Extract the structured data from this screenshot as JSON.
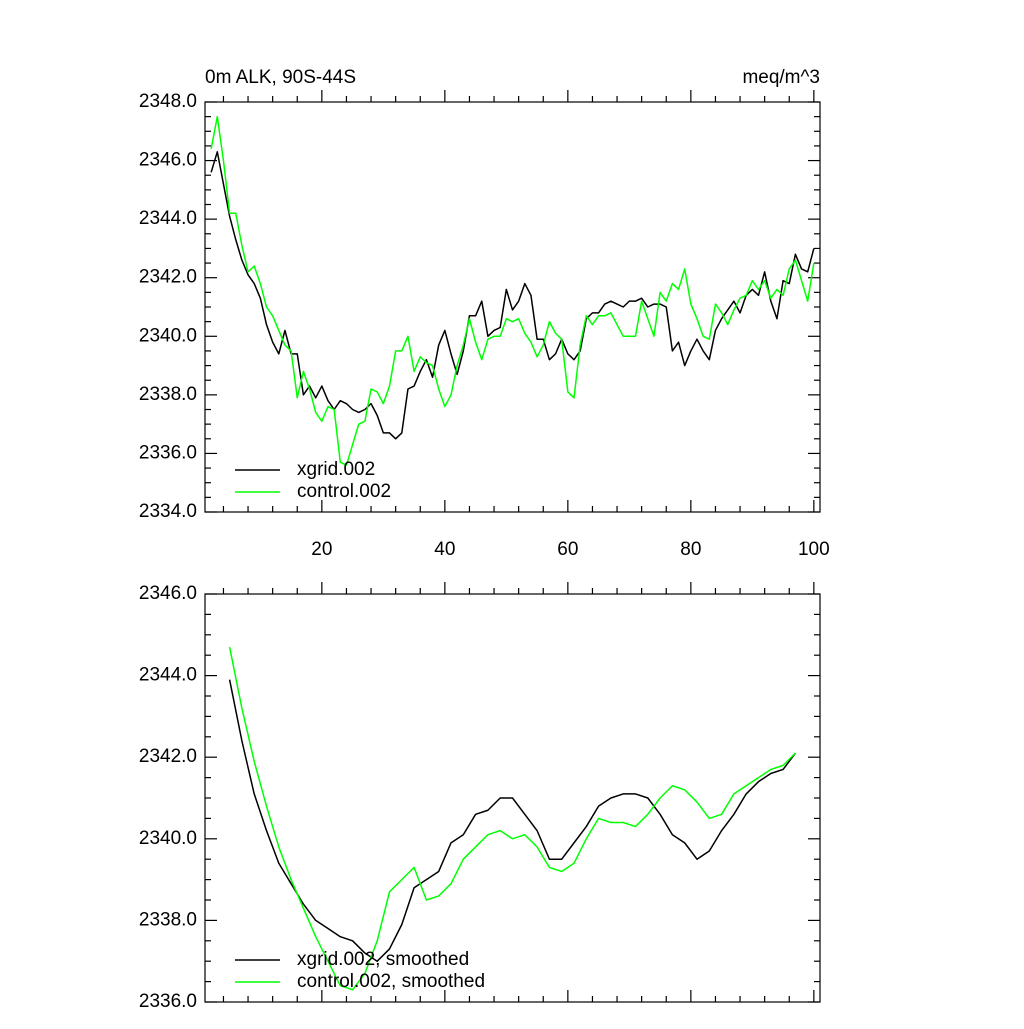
{
  "chart_data": [
    {
      "type": "line",
      "title": "0m ALK, 90S-44S",
      "units": "meq/m^3",
      "x": [
        2,
        3,
        4,
        5,
        6,
        7,
        8,
        9,
        10,
        11,
        12,
        13,
        14,
        15,
        16,
        17,
        18,
        19,
        20,
        21,
        22,
        23,
        24,
        25,
        26,
        27,
        28,
        29,
        30,
        31,
        32,
        33,
        34,
        35,
        36,
        37,
        38,
        39,
        40,
        41,
        42,
        43,
        44,
        45,
        46,
        47,
        48,
        49,
        50,
        51,
        52,
        53,
        54,
        55,
        56,
        57,
        58,
        59,
        60,
        61,
        62,
        63,
        64,
        65,
        66,
        67,
        68,
        69,
        70,
        71,
        72,
        73,
        74,
        75,
        76,
        77,
        78,
        79,
        80,
        81,
        82,
        83,
        84,
        85,
        86,
        87,
        88,
        89,
        90,
        91,
        92,
        93,
        94,
        95,
        96,
        97,
        98,
        99,
        100
      ],
      "series": [
        {
          "name": "xgrid.002",
          "color": "#000000",
          "values": [
            2345.6,
            2346.3,
            2345.2,
            2344.1,
            2343.3,
            2342.6,
            2342.1,
            2341.8,
            2341.3,
            2340.4,
            2339.8,
            2339.4,
            2340.2,
            2339.4,
            2339.4,
            2338.0,
            2338.3,
            2337.9,
            2338.3,
            2337.8,
            2337.5,
            2337.8,
            2337.7,
            2337.5,
            2337.4,
            2337.5,
            2337.7,
            2337.3,
            2336.7,
            2336.7,
            2336.5,
            2336.7,
            2338.2,
            2338.3,
            2338.8,
            2339.2,
            2338.6,
            2339.7,
            2340.2,
            2339.4,
            2338.7,
            2339.5,
            2340.7,
            2340.7,
            2341.2,
            2340.0,
            2340.2,
            2340.3,
            2341.6,
            2340.9,
            2341.2,
            2341.8,
            2341.4,
            2339.9,
            2339.9,
            2339.2,
            2339.4,
            2339.9,
            2339.4,
            2339.2,
            2339.5,
            2340.6,
            2340.8,
            2340.8,
            2341.1,
            2341.2,
            2341.1,
            2341.0,
            2341.2,
            2341.2,
            2341.3,
            2341.0,
            2341.1,
            2341.1,
            2341.0,
            2339.5,
            2339.8,
            2339.0,
            2339.5,
            2339.9,
            2339.5,
            2339.2,
            2340.2,
            2340.6,
            2340.9,
            2341.2,
            2340.8,
            2341.4,
            2341.6,
            2341.4,
            2342.2,
            2341.2,
            2340.6,
            2341.9,
            2341.8,
            2342.8,
            2342.3,
            2342.2,
            2343.0
          ]
        },
        {
          "name": "control.002",
          "color": "#00ff00",
          "values": [
            2346.4,
            2347.5,
            2346.0,
            2344.2,
            2344.2,
            2343.1,
            2342.2,
            2342.4,
            2341.8,
            2341.0,
            2340.7,
            2340.2,
            2339.7,
            2339.5,
            2337.9,
            2338.8,
            2338.2,
            2337.4,
            2337.1,
            2337.6,
            2337.5,
            2335.7,
            2335.6,
            2336.3,
            2337.0,
            2337.1,
            2338.2,
            2338.1,
            2337.7,
            2338.3,
            2339.5,
            2339.5,
            2340.0,
            2338.8,
            2339.3,
            2339.1,
            2339.0,
            2338.2,
            2337.6,
            2338.0,
            2339.0,
            2339.7,
            2340.6,
            2339.8,
            2339.2,
            2339.9,
            2340.0,
            2340.0,
            2340.6,
            2340.5,
            2340.6,
            2340.1,
            2339.8,
            2339.3,
            2339.7,
            2340.5,
            2340.1,
            2339.9,
            2338.1,
            2337.9,
            2339.7,
            2340.7,
            2340.4,
            2340.7,
            2340.7,
            2340.8,
            2340.4,
            2340.0,
            2340.0,
            2340.0,
            2341.2,
            2340.6,
            2340.0,
            2341.5,
            2341.2,
            2341.8,
            2341.6,
            2342.3,
            2341.1,
            2340.6,
            2340.0,
            2339.9,
            2341.1,
            2340.8,
            2340.4,
            2340.9,
            2341.3,
            2341.4,
            2341.9,
            2341.6,
            2341.9,
            2341.3,
            2341.6,
            2341.4,
            2342.3,
            2342.6,
            2341.9,
            2341.2,
            2342.5
          ]
        }
      ],
      "xlim": [
        1,
        101
      ],
      "xticks": [
        20,
        40,
        60,
        80,
        100
      ],
      "ylim": [
        2334,
        2348
      ],
      "yticks": [
        {
          "value": 2334,
          "label": "2334.0"
        },
        {
          "value": 2336,
          "label": "2336.0"
        },
        {
          "value": 2338,
          "label": "2338.0"
        },
        {
          "value": 2340,
          "label": "2340.0"
        },
        {
          "value": 2342,
          "label": "2342.0"
        },
        {
          "value": 2344,
          "label": "2344.0"
        },
        {
          "value": 2346,
          "label": "2346.0"
        },
        {
          "value": 2348,
          "label": "2348.0"
        }
      ],
      "legend": "lower left"
    },
    {
      "type": "line",
      "x": [
        5,
        7,
        9,
        11,
        13,
        15,
        17,
        19,
        21,
        23,
        25,
        27,
        29,
        31,
        33,
        35,
        37,
        39,
        41,
        43,
        45,
        47,
        49,
        51,
        53,
        55,
        57,
        59,
        61,
        63,
        65,
        67,
        69,
        71,
        73,
        75,
        77,
        79,
        81,
        83,
        85,
        87,
        89,
        91,
        93,
        95,
        97
      ],
      "series": [
        {
          "name": "xgrid.002, smoothed",
          "color": "#000000",
          "values": [
            2343.9,
            2342.4,
            2341.1,
            2340.2,
            2339.4,
            2338.9,
            2338.4,
            2338.0,
            2337.8,
            2337.6,
            2337.5,
            2337.2,
            2337.0,
            2337.3,
            2337.9,
            2338.8,
            2339.0,
            2339.2,
            2339.9,
            2340.1,
            2340.6,
            2340.7,
            2341.0,
            2341.0,
            2340.6,
            2340.2,
            2339.5,
            2339.5,
            2339.9,
            2340.3,
            2340.8,
            2341.0,
            2341.1,
            2341.1,
            2341.0,
            2340.6,
            2340.1,
            2339.9,
            2339.5,
            2339.7,
            2340.2,
            2340.6,
            2341.1,
            2341.4,
            2341.6,
            2341.7,
            2342.1
          ]
        },
        {
          "name": "control.002, smoothed",
          "color": "#00ff00",
          "values": [
            2344.7,
            2343.2,
            2341.9,
            2340.8,
            2339.8,
            2339.0,
            2338.3,
            2337.6,
            2337.0,
            2336.4,
            2336.3,
            2336.7,
            2337.5,
            2338.7,
            2339.0,
            2339.3,
            2338.5,
            2338.6,
            2338.9,
            2339.5,
            2339.8,
            2340.1,
            2340.2,
            2340.0,
            2340.1,
            2339.8,
            2339.3,
            2339.2,
            2339.4,
            2340.0,
            2340.5,
            2340.4,
            2340.4,
            2340.3,
            2340.6,
            2341.0,
            2341.3,
            2341.2,
            2340.9,
            2340.5,
            2340.6,
            2341.1,
            2341.3,
            2341.5,
            2341.7,
            2341.8,
            2342.1
          ]
        }
      ],
      "xlim": [
        1,
        101
      ],
      "xticks": [
        20,
        40,
        60,
        80,
        100
      ],
      "ylim": [
        2336,
        2346
      ],
      "yticks": [
        {
          "value": 2336,
          "label": "2336.0"
        },
        {
          "value": 2338,
          "label": "2338.0"
        },
        {
          "value": 2340,
          "label": "2340.0"
        },
        {
          "value": 2342,
          "label": "2342.0"
        },
        {
          "value": 2344,
          "label": "2344.0"
        },
        {
          "value": 2346,
          "label": "2346.0"
        }
      ],
      "legend": "lower left"
    }
  ]
}
